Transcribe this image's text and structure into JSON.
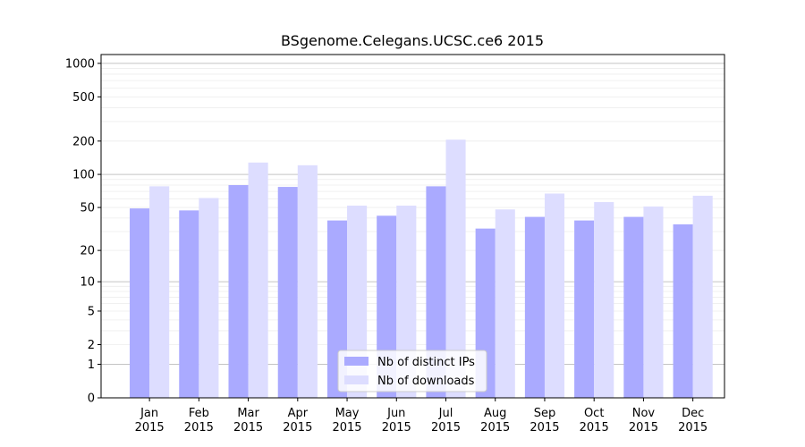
{
  "chart_data": {
    "type": "bar",
    "title": "BSgenome.Celegans.UCSC.ce6 2015",
    "xlabel": "",
    "ylabel": "",
    "yscale": "log1p",
    "ylim": [
      0,
      1200
    ],
    "yticks": [
      0,
      1,
      2,
      5,
      10,
      20,
      50,
      100,
      200,
      500,
      1000
    ],
    "grid": true,
    "legend_position": "lower-center",
    "categories": [
      [
        "Jan",
        "2015"
      ],
      [
        "Feb",
        "2015"
      ],
      [
        "Mar",
        "2015"
      ],
      [
        "Apr",
        "2015"
      ],
      [
        "May",
        "2015"
      ],
      [
        "Jun",
        "2015"
      ],
      [
        "Jul",
        "2015"
      ],
      [
        "Aug",
        "2015"
      ],
      [
        "Sep",
        "2015"
      ],
      [
        "Oct",
        "2015"
      ],
      [
        "Nov",
        "2015"
      ],
      [
        "Dec",
        "2015"
      ]
    ],
    "series": [
      {
        "name": "Nb of distinct IPs",
        "color": "#aaaaff",
        "values": [
          49,
          47,
          80,
          77,
          38,
          42,
          78,
          32,
          41,
          38,
          41,
          35
        ]
      },
      {
        "name": "Nb of downloads",
        "color": "#ddddff",
        "values": [
          78,
          61,
          128,
          121,
          52,
          52,
          206,
          48,
          67,
          56,
          51,
          64
        ]
      }
    ]
  }
}
